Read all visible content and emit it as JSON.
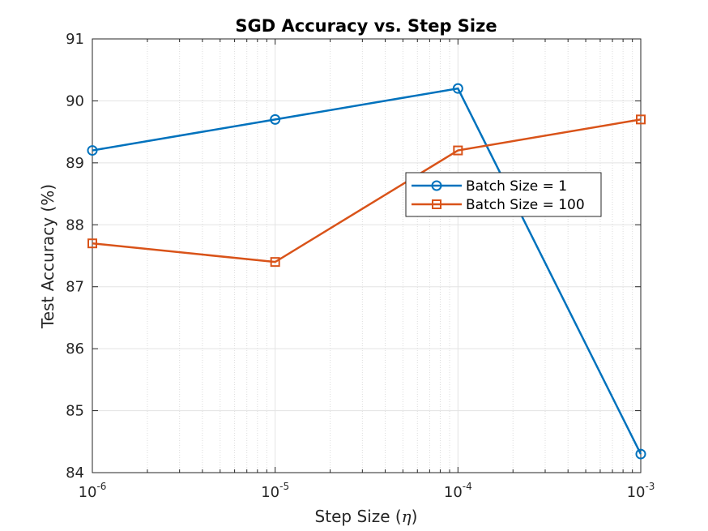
{
  "chart_data": {
    "type": "line",
    "title": "SGD Accuracy vs. Step Size",
    "xlabel_prefix": "Step Size (",
    "xlabel_symbol": "η",
    "xlabel_suffix": ")",
    "ylabel": "Test Accuracy (%)",
    "x_scale": "log",
    "xlim": [
      1e-06,
      0.001
    ],
    "ylim": [
      84,
      91
    ],
    "x_ticks": [
      {
        "value": 1e-06,
        "base": "10",
        "exp": "-6"
      },
      {
        "value": 1e-05,
        "base": "10",
        "exp": "-5"
      },
      {
        "value": 0.0001,
        "base": "10",
        "exp": "-4"
      },
      {
        "value": 0.001,
        "base": "10",
        "exp": "-3"
      }
    ],
    "y_ticks": [
      "84",
      "85",
      "86",
      "87",
      "88",
      "89",
      "90",
      "91"
    ],
    "grid": true,
    "legend_position": "center-right",
    "x": [
      1e-06,
      1e-05,
      0.0001,
      0.001
    ],
    "series": [
      {
        "name": "Batch Size = 1",
        "marker": "circle",
        "color": "#0072BD",
        "values": [
          89.2,
          89.7,
          90.2,
          84.3
        ]
      },
      {
        "name": "Batch Size = 100",
        "marker": "square",
        "color": "#D95319",
        "values": [
          87.7,
          87.4,
          89.2,
          89.7
        ]
      }
    ]
  }
}
